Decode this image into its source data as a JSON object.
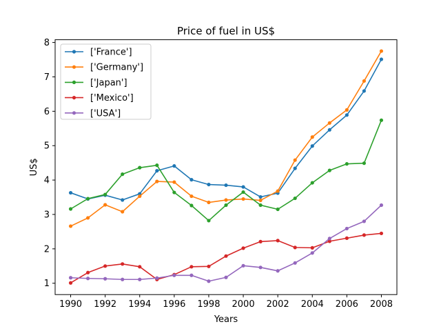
{
  "chart_data": {
    "type": "line",
    "title": "Price of fuel in US$",
    "xlabel": "Years",
    "ylabel": "US$",
    "x": [
      1990,
      1991,
      1992,
      1993,
      1994,
      1995,
      1996,
      1997,
      1998,
      1999,
      2000,
      2001,
      2002,
      2003,
      2004,
      2005,
      2006,
      2007,
      2008
    ],
    "xlim": [
      1989.1,
      2008.9
    ],
    "ylim": [
      0.67,
      8.08
    ],
    "xticks": [
      1990,
      1992,
      1994,
      1996,
      1998,
      2000,
      2002,
      2004,
      2006,
      2008
    ],
    "yticks": [
      1,
      2,
      3,
      4,
      5,
      6,
      7,
      8
    ],
    "grid": false,
    "legend_position": "top-left",
    "series": [
      {
        "name": "['France']",
        "color": "#1f77b4",
        "values": [
          3.63,
          3.45,
          3.56,
          3.42,
          3.6,
          4.27,
          4.41,
          4.01,
          3.87,
          3.85,
          3.8,
          3.51,
          3.62,
          4.34,
          4.99,
          5.46,
          5.89,
          6.59,
          7.51
        ]
      },
      {
        "name": "['Germany']",
        "color": "#ff7f0e",
        "values": [
          2.66,
          2.9,
          3.28,
          3.08,
          3.53,
          3.96,
          3.94,
          3.53,
          3.35,
          3.42,
          3.45,
          3.41,
          3.68,
          4.58,
          5.25,
          5.66,
          6.04,
          6.88,
          7.75
        ]
      },
      {
        "name": "['Japan']",
        "color": "#2ca02c",
        "values": [
          3.16,
          3.46,
          3.58,
          4.17,
          4.36,
          4.43,
          3.64,
          3.26,
          2.82,
          3.27,
          3.65,
          3.27,
          3.15,
          3.47,
          3.92,
          4.28,
          4.47,
          4.49,
          5.74
        ]
      },
      {
        "name": "['Mexico']",
        "color": "#d62728",
        "values": [
          1.01,
          1.31,
          1.5,
          1.56,
          1.48,
          1.11,
          1.25,
          1.48,
          1.49,
          1.79,
          2.02,
          2.21,
          2.24,
          2.04,
          2.03,
          2.22,
          2.31,
          2.4,
          2.45
        ]
      },
      {
        "name": "['USA']",
        "color": "#9467bd",
        "values": [
          1.16,
          1.14,
          1.13,
          1.11,
          1.11,
          1.15,
          1.23,
          1.23,
          1.06,
          1.17,
          1.51,
          1.46,
          1.36,
          1.59,
          1.88,
          2.3,
          2.59,
          2.8,
          3.27
        ]
      }
    ]
  }
}
